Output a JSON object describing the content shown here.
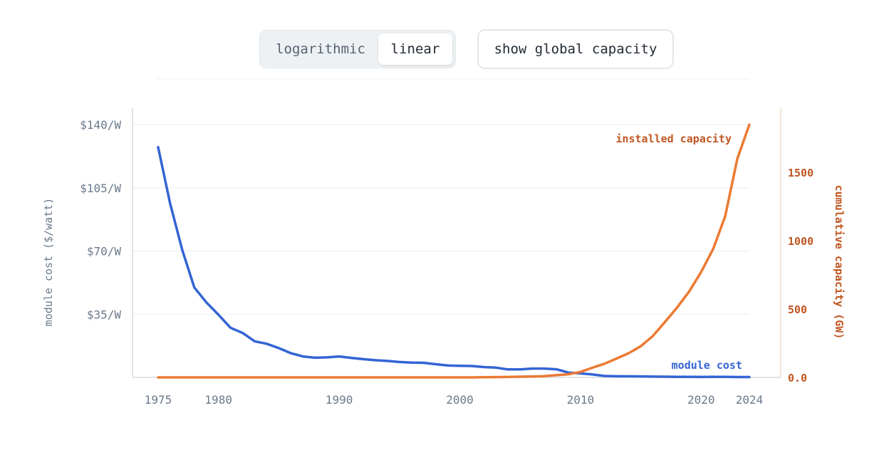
{
  "controls": {
    "scale_options": [
      "logarithmic",
      "linear"
    ],
    "active_scale": "linear",
    "capacity_button_label": "show global capacity"
  },
  "colors": {
    "module_cost": "#3464d4",
    "installed_capacity": "#eb7a33",
    "capacity_text": "#c05621",
    "cost_axis_text": "#6b7a8c",
    "grid": "#e8ecef",
    "axis": "#d5dbe1",
    "right_axis": "#f0dcc4"
  },
  "chart_data": {
    "type": "line",
    "x": [
      1975,
      1976,
      1977,
      1978,
      1979,
      1980,
      1981,
      1982,
      1983,
      1984,
      1985,
      1986,
      1987,
      1988,
      1989,
      1990,
      1991,
      1992,
      1993,
      1994,
      1995,
      1996,
      1997,
      1998,
      1999,
      2000,
      2001,
      2002,
      2003,
      2004,
      2005,
      2006,
      2007,
      2008,
      2009,
      2010,
      2011,
      2012,
      2013,
      2014,
      2015,
      2016,
      2017,
      2018,
      2019,
      2020,
      2021,
      2022,
      2023,
      2024
    ],
    "series": [
      {
        "name": "module cost",
        "axis": "left",
        "values": [
          127.5,
          96.2,
          70.5,
          49.8,
          41.5,
          34.7,
          27.5,
          24.6,
          20,
          18.6,
          16.2,
          13.4,
          11.6,
          10.9,
          11.1,
          11.6,
          10.8,
          10.1,
          9.5,
          9.1,
          8.5,
          8.2,
          8.1,
          7.3,
          6.6,
          6.4,
          6.3,
          5.7,
          5.4,
          4.4,
          4.4,
          4.9,
          4.9,
          4.5,
          2.7,
          2.2,
          1.6,
          0.8,
          0.65,
          0.6,
          0.55,
          0.45,
          0.38,
          0.33,
          0.3,
          0.25,
          0.26,
          0.27,
          0.2,
          0.2
        ]
      },
      {
        "name": "installed capacity",
        "axis": "right",
        "values": [
          0,
          0,
          0,
          0,
          0,
          0,
          0,
          0,
          0,
          0,
          0,
          0,
          0,
          0,
          0,
          0,
          0,
          0,
          0,
          0,
          0,
          0,
          0,
          0,
          0,
          0,
          0,
          1,
          2,
          3,
          5,
          7,
          9,
          16,
          23,
          40,
          71,
          100,
          138,
          177,
          228,
          303,
          405,
          510,
          627,
          770,
          940,
          1180,
          1600,
          1850
        ]
      }
    ],
    "title": "",
    "xlabel": "",
    "ylabel": "module cost ($/watt)",
    "y2label": "cumulative capacity (GW)",
    "xlim": [
      1975,
      2024
    ],
    "ylim": [
      0,
      140
    ],
    "y2lim": [
      0,
      1850
    ],
    "x_ticks": [
      "1975",
      "1980",
      "1990",
      "2000",
      "2010",
      "2020",
      "2024"
    ],
    "y_ticks": [
      "$35/W",
      "$70/W",
      "$105/W",
      "$140/W"
    ],
    "y2_ticks": [
      "0.0",
      "500",
      "1000",
      "1500"
    ],
    "annotations": [
      "installed capacity",
      "module cost"
    ],
    "grid": true
  }
}
